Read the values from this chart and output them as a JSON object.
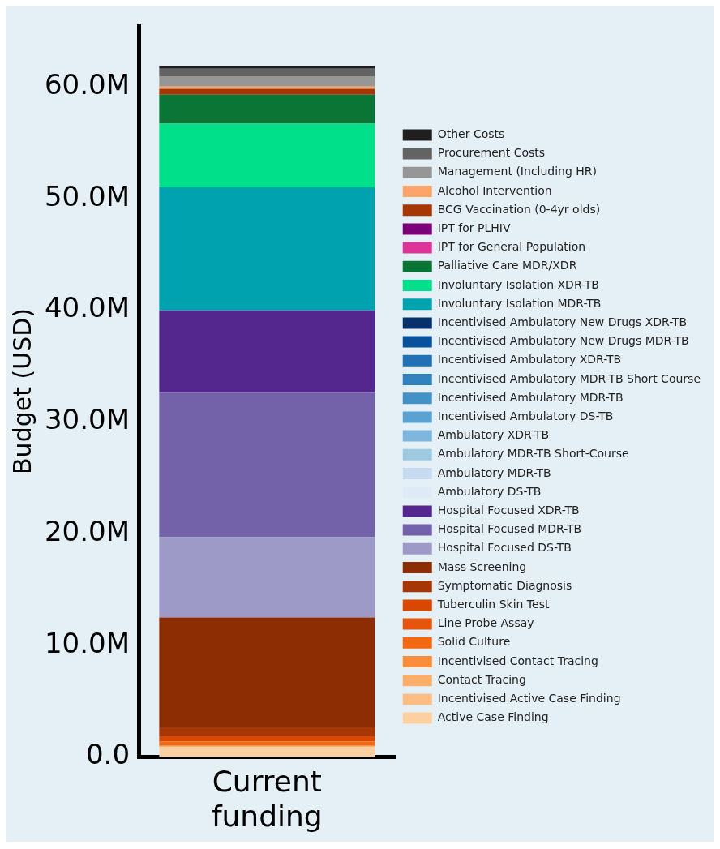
{
  "chart_data": {
    "type": "bar",
    "stacked": true,
    "ylabel": "Budget (USD)",
    "categories": [
      "Current funding"
    ],
    "ylim": [
      0,
      65.5
    ],
    "yticks": [
      {
        "value": 0,
        "label": "0.0"
      },
      {
        "value": 10,
        "label": "10.0M"
      },
      {
        "value": 20,
        "label": "20.0M"
      },
      {
        "value": 30,
        "label": "30.0M"
      },
      {
        "value": 40,
        "label": "40.0M"
      },
      {
        "value": 50,
        "label": "50.0M"
      },
      {
        "value": 60,
        "label": "60.0M"
      }
    ],
    "grid": false,
    "legend": "right",
    "series": [
      {
        "name": "Active Case Finding",
        "color": "#fdd0a2",
        "values": [
          0.9
        ]
      },
      {
        "name": "Incentivised Active Case Finding",
        "color": "#fdbe85",
        "values": [
          0
        ]
      },
      {
        "name": "Contact Tracing",
        "color": "#fdae6b",
        "values": [
          0.1
        ]
      },
      {
        "name": "Incentivised Contact Tracing",
        "color": "#fd8d3c",
        "values": [
          0
        ]
      },
      {
        "name": "Solid Culture",
        "color": "#f16913",
        "values": [
          0.4
        ]
      },
      {
        "name": "Line Probe Assay",
        "color": "#e6550d",
        "values": [
          0
        ]
      },
      {
        "name": "Tuberculin Skin Test",
        "color": "#d94801",
        "values": [
          0.45
        ]
      },
      {
        "name": "Symptomatic Diagnosis",
        "color": "#a63603",
        "values": [
          0.8
        ]
      },
      {
        "name": "Mass Screening",
        "color": "#8c2d04",
        "values": [
          9.85
        ]
      },
      {
        "name": "Hospital Focused DS-TB",
        "color": "#9e9ac8",
        "values": [
          7.2
        ]
      },
      {
        "name": "Hospital Focused MDR-TB",
        "color": "#7361aa",
        "values": [
          12.9
        ]
      },
      {
        "name": "Hospital Focused XDR-TB",
        "color": "#54278f",
        "values": [
          7.4
        ]
      },
      {
        "name": "Ambulatory DS-TB",
        "color": "#deebf7",
        "values": [
          0
        ]
      },
      {
        "name": "Ambulatory MDR-TB",
        "color": "#c6dbef",
        "values": [
          0
        ]
      },
      {
        "name": "Ambulatory MDR-TB Short-Course",
        "color": "#9ecae1",
        "values": [
          0
        ]
      },
      {
        "name": "Ambulatory XDR-TB",
        "color": "#7fb6db",
        "values": [
          0
        ]
      },
      {
        "name": "Incentivised Ambulatory DS-TB",
        "color": "#5aa2d2",
        "values": [
          0
        ]
      },
      {
        "name": "Incentivised Ambulatory MDR-TB",
        "color": "#4292c6",
        "values": [
          0
        ]
      },
      {
        "name": "Incentivised Ambulatory MDR-TB Short Course",
        "color": "#3182bd",
        "values": [
          0
        ]
      },
      {
        "name": "Incentivised Ambulatory XDR-TB",
        "color": "#2171b5",
        "values": [
          0
        ]
      },
      {
        "name": "Incentivised Ambulatory New Drugs MDR-TB",
        "color": "#08519c",
        "values": [
          0
        ]
      },
      {
        "name": "Incentivised Ambulatory New Drugs XDR-TB",
        "color": "#08306b",
        "values": [
          0
        ]
      },
      {
        "name": "Involuntary Isolation MDR-TB",
        "color": "#00a2b0",
        "values": [
          11.0
        ]
      },
      {
        "name": "Involuntary Isolation XDR-TB",
        "color": "#00e08a",
        "values": [
          5.7
        ]
      },
      {
        "name": "Palliative Care MDR/XDR",
        "color": "#0b7536",
        "values": [
          2.6
        ]
      },
      {
        "name": "IPT for General Population",
        "color": "#dd3497",
        "values": [
          0
        ]
      },
      {
        "name": "IPT for PLHIV",
        "color": "#7a0177",
        "values": [
          0
        ]
      },
      {
        "name": "BCG Vaccination (0-4yr olds)",
        "color": "#a63603",
        "values": [
          0.53
        ]
      },
      {
        "name": "Alcohol Intervention",
        "color": "#fda46b",
        "values": [
          0.2
        ]
      },
      {
        "name": "Management (Including HR)",
        "color": "#969696",
        "values": [
          0.93
        ]
      },
      {
        "name": "Procurement Costs",
        "color": "#636363",
        "values": [
          0.67
        ]
      },
      {
        "name": "Other Costs",
        "color": "#1f1f1f",
        "values": [
          0.24
        ]
      }
    ]
  }
}
